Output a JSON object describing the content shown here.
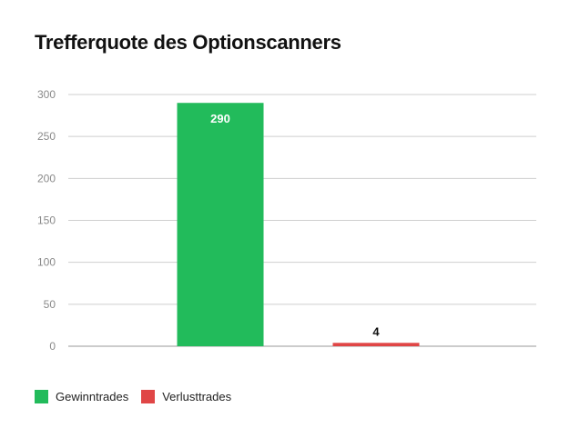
{
  "chart_data": {
    "type": "bar",
    "title": "Trefferquote des Optionscanners",
    "categories": [
      "Gewinntrades",
      "Verlusttrades"
    ],
    "values": [
      290,
      4
    ],
    "data_labels": [
      "290",
      "4"
    ],
    "colors": [
      "#22bb5b",
      "#e04646"
    ],
    "ylim": [
      0,
      300
    ],
    "yticks": [
      0,
      50,
      100,
      150,
      200,
      250,
      300
    ],
    "ytick_labels": [
      "0",
      "50",
      "100",
      "150",
      "200",
      "250",
      "300"
    ],
    "xlabel": "",
    "ylabel": "",
    "grid": true,
    "legend": {
      "position": "bottom-left",
      "entries": [
        {
          "label": "Gewinntrades",
          "color": "#22bb5b"
        },
        {
          "label": "Verlusttrades",
          "color": "#e04646"
        }
      ]
    }
  }
}
